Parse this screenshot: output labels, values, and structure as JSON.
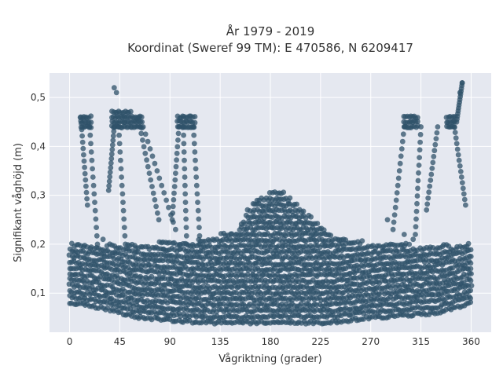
{
  "chart_data": {
    "type": "scatter",
    "title_line1": "År 1979 - 2019",
    "title_line2": "Koordinat (Sweref 99 TM): E 470586, N 6209417",
    "xlabel": "Vågriktning (grader)",
    "ylabel": "Signifikant våghöjd (m)",
    "xlim": [
      -18,
      378
    ],
    "ylim": [
      0.02,
      0.55
    ],
    "xticks": [
      0,
      45,
      90,
      135,
      180,
      225,
      270,
      315,
      360
    ],
    "xtick_labels": [
      "0",
      "45",
      "90",
      "135",
      "180",
      "225",
      "270",
      "315",
      "360"
    ],
    "yticks": [
      0.1,
      0.2,
      0.3,
      0.4,
      0.5
    ],
    "ytick_labels": [
      "0,1",
      "0,2",
      "0,3",
      "0,4",
      "0,5"
    ],
    "grid": true,
    "background_color": "#e5e8f0",
    "marker_color": "#2f5269",
    "marker_opacity": 0.75,
    "dense_band": {
      "x_range": [
        0,
        360
      ],
      "envelope": [
        {
          "x": 0,
          "ymin": 0.08,
          "ymax": 0.2
        },
        {
          "x": 30,
          "ymin": 0.07,
          "ymax": 0.2
        },
        {
          "x": 60,
          "ymin": 0.05,
          "ymax": 0.2
        },
        {
          "x": 120,
          "ymin": 0.04,
          "ymax": 0.21
        },
        {
          "x": 150,
          "ymin": 0.04,
          "ymax": 0.23
        },
        {
          "x": 160,
          "ymin": 0.04,
          "ymax": 0.27
        },
        {
          "x": 170,
          "ymin": 0.04,
          "ymax": 0.3
        },
        {
          "x": 190,
          "ymin": 0.04,
          "ymax": 0.31
        },
        {
          "x": 205,
          "ymin": 0.04,
          "ymax": 0.28
        },
        {
          "x": 215,
          "ymin": 0.04,
          "ymax": 0.26
        },
        {
          "x": 235,
          "ymin": 0.04,
          "ymax": 0.22
        },
        {
          "x": 270,
          "ymin": 0.05,
          "ymax": 0.2
        },
        {
          "x": 330,
          "ymin": 0.06,
          "ymax": 0.2
        },
        {
          "x": 360,
          "ymin": 0.08,
          "ymax": 0.2
        }
      ]
    },
    "clusters": [
      {
        "x_range": [
          10,
          20
        ],
        "y_range": [
          0.44,
          0.47
        ]
      },
      {
        "x_range": [
          38,
          55
        ],
        "y_range": [
          0.44,
          0.48
        ]
      },
      {
        "x_range": [
          56,
          66
        ],
        "y_range": [
          0.44,
          0.47
        ]
      },
      {
        "x_range": [
          97,
          113
        ],
        "y_range": [
          0.44,
          0.47
        ]
      },
      {
        "x_range": [
          300,
          312
        ],
        "y_range": [
          0.44,
          0.47
        ]
      },
      {
        "x_range": [
          338,
          346
        ],
        "y_range": [
          0.44,
          0.47
        ]
      }
    ],
    "trails": [
      {
        "from": [
          18,
          0.44
        ],
        "to": [
          25,
          0.2
        ]
      },
      {
        "from": [
          10,
          0.46
        ],
        "to": [
          16,
          0.28
        ]
      },
      {
        "from": [
          44,
          0.44
        ],
        "to": [
          50,
          0.2
        ]
      },
      {
        "from": [
          40,
          0.44
        ],
        "to": [
          35,
          0.31
        ]
      },
      {
        "from": [
          63,
          0.44
        ],
        "to": [
          80,
          0.25
        ]
      },
      {
        "from": [
          66,
          0.44
        ],
        "to": [
          95,
          0.23
        ]
      },
      {
        "from": [
          102,
          0.44
        ],
        "to": [
          105,
          0.2
        ]
      },
      {
        "from": [
          98,
          0.44
        ],
        "to": [
          92,
          0.25
        ]
      },
      {
        "from": [
          111,
          0.44
        ],
        "to": [
          117,
          0.2
        ]
      },
      {
        "from": [
          300,
          0.44
        ],
        "to": [
          290,
          0.23
        ]
      },
      {
        "from": [
          315,
          0.44
        ],
        "to": [
          310,
          0.22
        ]
      },
      {
        "from": [
          330,
          0.44
        ],
        "to": [
          320,
          0.27
        ]
      },
      {
        "from": [
          345,
          0.44
        ],
        "to": [
          355,
          0.28
        ]
      },
      {
        "from": [
          347,
          0.45
        ],
        "to": [
          352,
          0.53
        ]
      }
    ],
    "outliers": [
      {
        "x": 40,
        "y": 0.52
      },
      {
        "x": 42,
        "y": 0.51
      },
      {
        "x": 62,
        "y": 0.46
      },
      {
        "x": 285,
        "y": 0.25
      },
      {
        "x": 300,
        "y": 0.22
      },
      {
        "x": 308,
        "y": 0.21
      },
      {
        "x": 352,
        "y": 0.53
      },
      {
        "x": 350,
        "y": 0.51
      },
      {
        "x": 84,
        "y": 0.19
      },
      {
        "x": 30,
        "y": 0.21
      }
    ]
  }
}
